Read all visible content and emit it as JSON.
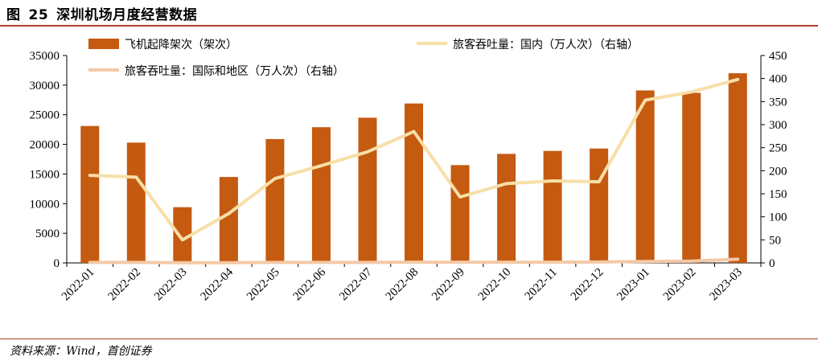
{
  "figure": {
    "label": "图",
    "number": "25",
    "title": "深圳机场月度经营数据"
  },
  "source": "资料来源：Wind，首创证券",
  "colors": {
    "bars": "#c55a11",
    "domestic_line": "#f7dfa7",
    "intl_line": "#f4c9a7",
    "rule": "#b5402a"
  },
  "chart_data": {
    "type": "bar",
    "categories": [
      "2022-01",
      "2022-02",
      "2022-03",
      "2022-04",
      "2022-05",
      "2022-06",
      "2022-07",
      "2022-08",
      "2022-09",
      "2022-10",
      "2022-11",
      "2022-12",
      "2023-01",
      "2023-02",
      "2023-03"
    ],
    "series": [
      {
        "name": "飞机起降架次（架次）",
        "type": "bar",
        "axis": "left",
        "values": [
          23100,
          20300,
          9400,
          14500,
          20900,
          22900,
          24500,
          26900,
          16500,
          18400,
          18900,
          19300,
          29100,
          28700,
          32000
        ]
      },
      {
        "name": "旅客吞吐量：国内（万人次）（右轴）",
        "type": "line",
        "axis": "right",
        "values": [
          190,
          186,
          50,
          107,
          183,
          211,
          241,
          285,
          143,
          172,
          178,
          176,
          353,
          371,
          398
        ]
      },
      {
        "name": "旅客吞吐量：国际和地区（万人次）（右轴）",
        "type": "line",
        "axis": "right",
        "values": [
          1,
          1,
          0.5,
          0.5,
          1,
          1,
          1,
          1.5,
          1.5,
          1.5,
          1.5,
          2,
          3,
          4,
          8
        ]
      }
    ],
    "ylim_left": [
      0,
      35000
    ],
    "yticks_left": [
      0,
      5000,
      10000,
      15000,
      20000,
      25000,
      30000,
      35000
    ],
    "ylim_right": [
      0,
      450
    ],
    "yticks_right": [
      0,
      50,
      100,
      150,
      200,
      250,
      300,
      350,
      400,
      450
    ],
    "grid": false,
    "legend": "top"
  }
}
